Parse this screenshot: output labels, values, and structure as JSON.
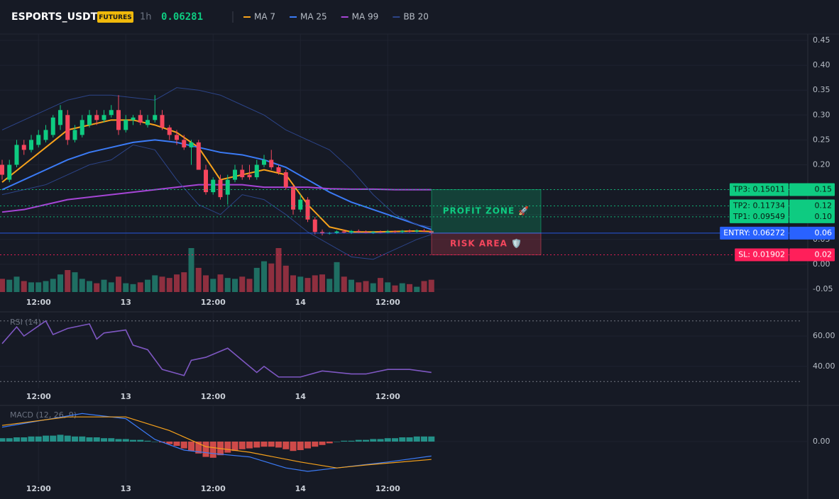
{
  "header": {
    "symbol": "ESPORTS_USDT",
    "badge": "FUTURES",
    "interval": "1h",
    "price": 0.06281
  },
  "chart_data": [
    {
      "type": "candlestick",
      "categories": [
        null,
        null,
        null,
        null,
        null,
        "12:00",
        null,
        null,
        null,
        null,
        null,
        null,
        null,
        null,
        null,
        null,
        null,
        "13",
        null,
        null,
        null,
        null,
        null,
        null,
        null,
        null,
        null,
        null,
        null,
        "12:00",
        null,
        null,
        null,
        null,
        null,
        null,
        null,
        null,
        null,
        null,
        null,
        "14",
        null,
        null,
        null,
        null,
        null,
        null,
        null,
        null,
        null,
        null,
        null,
        "12:00",
        null,
        null,
        null,
        null,
        null,
        null
      ],
      "open": [
        0.2,
        0.17,
        0.2,
        0.24,
        0.23,
        0.24,
        0.25,
        0.26,
        0.28,
        0.3,
        0.25,
        0.26,
        0.28,
        0.3,
        0.29,
        0.3,
        0.31,
        0.27,
        0.29,
        0.3,
        0.28,
        0.29,
        0.3,
        0.275,
        0.26,
        0.25,
        0.235,
        0.245,
        0.19,
        0.145,
        0.17,
        0.14,
        0.17,
        0.19,
        0.18,
        0.175,
        0.2,
        0.21,
        0.195,
        0.185,
        0.155,
        0.11,
        0.13,
        0.09,
        0.065,
        0.062,
        0.063,
        0.066,
        0.064,
        0.067,
        0.065,
        0.063,
        0.065,
        0.064,
        0.066,
        0.065,
        0.067,
        0.066,
        0.068,
        0.067
      ],
      "high": [
        0.21,
        0.21,
        0.25,
        0.25,
        0.26,
        0.27,
        0.28,
        0.3,
        0.32,
        0.31,
        0.28,
        0.3,
        0.31,
        0.31,
        0.31,
        0.32,
        0.34,
        0.3,
        0.3,
        0.31,
        0.3,
        0.34,
        0.31,
        0.28,
        0.27,
        0.26,
        0.25,
        0.25,
        0.2,
        0.175,
        0.18,
        0.18,
        0.2,
        0.2,
        0.2,
        0.21,
        0.22,
        0.23,
        0.2,
        0.19,
        0.16,
        0.14,
        0.135,
        0.095,
        0.07,
        0.065,
        0.068,
        0.07,
        0.069,
        0.07,
        0.068,
        0.067,
        0.068,
        0.069,
        0.068,
        0.069,
        0.07,
        0.07,
        0.071,
        0.068
      ],
      "low": [
        0.17,
        0.165,
        0.195,
        0.22,
        0.225,
        0.235,
        0.245,
        0.255,
        0.27,
        0.24,
        0.245,
        0.255,
        0.275,
        0.28,
        0.285,
        0.295,
        0.26,
        0.265,
        0.28,
        0.28,
        0.275,
        0.285,
        0.27,
        0.25,
        0.24,
        0.23,
        0.2,
        0.19,
        0.14,
        0.14,
        0.13,
        0.12,
        0.165,
        0.17,
        0.17,
        0.17,
        0.195,
        0.19,
        0.18,
        0.15,
        0.1,
        0.105,
        0.085,
        0.06,
        0.058,
        0.06,
        0.061,
        0.062,
        0.061,
        0.063,
        0.062,
        0.061,
        0.062,
        0.062,
        0.063,
        0.063,
        0.064,
        0.064,
        0.065,
        0.061
      ],
      "close": [
        0.18,
        0.2,
        0.24,
        0.23,
        0.25,
        0.26,
        0.27,
        0.295,
        0.31,
        0.25,
        0.27,
        0.29,
        0.3,
        0.29,
        0.3,
        0.31,
        0.27,
        0.29,
        0.295,
        0.285,
        0.29,
        0.3,
        0.275,
        0.26,
        0.25,
        0.235,
        0.245,
        0.19,
        0.145,
        0.17,
        0.135,
        0.17,
        0.19,
        0.175,
        0.175,
        0.2,
        0.21,
        0.195,
        0.185,
        0.155,
        0.11,
        0.13,
        0.09,
        0.065,
        0.062,
        0.063,
        0.066,
        0.064,
        0.067,
        0.065,
        0.063,
        0.065,
        0.064,
        0.066,
        0.065,
        0.067,
        0.066,
        0.068,
        0.067,
        0.06281
      ],
      "volume": [
        30,
        28,
        35,
        25,
        22,
        22,
        25,
        30,
        40,
        50,
        45,
        30,
        25,
        20,
        28,
        22,
        35,
        20,
        18,
        22,
        28,
        38,
        35,
        32,
        40,
        45,
        100,
        55,
        38,
        30,
        40,
        32,
        30,
        35,
        30,
        55,
        70,
        65,
        100,
        60,
        38,
        35,
        32,
        38,
        40,
        30,
        68,
        35,
        28,
        22,
        25,
        20,
        32,
        22,
        15,
        20,
        18,
        12,
        25,
        28
      ],
      "vlim": [
        0,
        100
      ],
      "up_color": "#0ecb81",
      "down_color": "#f6465d",
      "volume_up_color": "#1f6f63",
      "volume_down_color": "#8e2f3f",
      "ylim": [
        -0.05,
        0.45
      ],
      "yticks": [
        0.45,
        {
          "value": 0.4,
          "label": "0.40"
        },
        0.35,
        {
          "value": 0.3,
          "label": "0.30"
        },
        0.25,
        {
          "value": 0.2,
          "label": "0.20"
        },
        0.15,
        {
          "value": 0.1,
          "label": "0.10"
        },
        0.05,
        {
          "value": 0,
          "label": "0.00"
        },
        -0.05
      ],
      "grid": true,
      "lines": [
        {
          "name": "MA 7",
          "color": "#f7a21b",
          "x": [
            0,
            3,
            6,
            9,
            12,
            15,
            18,
            21,
            24,
            27,
            30,
            33,
            36,
            39,
            42,
            45,
            48,
            51,
            54,
            57,
            59
          ],
          "values": [
            0.165,
            0.2,
            0.235,
            0.27,
            0.28,
            0.29,
            0.29,
            0.28,
            0.265,
            0.235,
            0.17,
            0.18,
            0.19,
            0.18,
            0.12,
            0.075,
            0.065,
            0.065,
            0.066,
            0.067,
            0.066
          ]
        },
        {
          "name": "MA 25",
          "color": "#3b7bf6",
          "x": [
            0,
            3,
            6,
            9,
            12,
            15,
            18,
            21,
            24,
            27,
            30,
            33,
            36,
            39,
            42,
            45,
            48,
            51,
            54,
            57,
            59
          ],
          "values": [
            0.15,
            0.17,
            0.19,
            0.21,
            0.225,
            0.235,
            0.245,
            0.25,
            0.245,
            0.235,
            0.225,
            0.22,
            0.21,
            0.195,
            0.17,
            0.145,
            0.125,
            0.11,
            0.095,
            0.08,
            0.07
          ]
        },
        {
          "name": "MA 99",
          "color": "#a645d6",
          "x": [
            0,
            3,
            6,
            9,
            12,
            15,
            18,
            21,
            24,
            27,
            30,
            33,
            36,
            39,
            42,
            45,
            48,
            51,
            54,
            57,
            59
          ],
          "values": [
            0.105,
            0.11,
            0.12,
            0.13,
            0.135,
            0.14,
            0.145,
            0.15,
            0.155,
            0.16,
            0.16,
            0.16,
            0.155,
            0.155,
            0.155,
            0.152,
            0.151,
            0.151,
            0.15,
            0.15,
            0.15
          ]
        },
        {
          "name": "BB 20",
          "color": "#2c4488",
          "x": [
            0,
            3,
            6,
            9,
            12,
            15,
            18,
            21,
            24,
            27,
            30,
            33,
            36,
            39,
            42,
            45,
            48,
            51,
            54,
            57,
            59
          ],
          "values": [
            0.27,
            0.29,
            0.31,
            0.33,
            0.34,
            0.34,
            0.335,
            0.33,
            0.355,
            0.35,
            0.34,
            0.32,
            0.3,
            0.27,
            0.25,
            0.23,
            0.19,
            0.14,
            0.1,
            0.08,
            0.075
          ],
          "lower": [
            0.14,
            0.15,
            0.16,
            0.18,
            0.2,
            0.21,
            0.24,
            0.23,
            0.17,
            0.12,
            0.1,
            0.14,
            0.13,
            0.1,
            0.065,
            0.04,
            0.015,
            0.01,
            0.03,
            0.05,
            0.06
          ]
        }
      ],
      "levels": [
        {
          "label": "TP3: 0.15011",
          "value": 0.15011,
          "tag": "0.15",
          "color": "#0ecb81",
          "style": "dotted"
        },
        {
          "label": "TP2: 0.11734",
          "value": 0.11734,
          "tag": "0.12",
          "color": "#0ecb81",
          "style": "dotted"
        },
        {
          "label": "TP1: 0.09549",
          "value": 0.09549,
          "tag": "0.10",
          "color": "#0ecb81",
          "style": "dotted"
        },
        {
          "label": "ENTRY: 0.06272",
          "value": 0.06272,
          "tag": "0.06",
          "color": "#2962ff",
          "style": "solid"
        },
        {
          "label": "SL: 0.01902",
          "value": 0.01902,
          "tag": "0.02",
          "color": "#ff1f5a",
          "style": "dotted"
        }
      ],
      "zones": [
        {
          "label": "PROFIT ZONE 🚀",
          "from": 0.15011,
          "to": 0.06272,
          "color": "#0ecb81"
        },
        {
          "label": "RISK AREA 🛡️",
          "from": 0.06272,
          "to": 0.01902,
          "color": "#f6465d"
        }
      ]
    },
    {
      "type": "line",
      "title": "RSI (14)",
      "color": "#7e57c2",
      "x": [
        0,
        2,
        3,
        6,
        7,
        9,
        12,
        13,
        14,
        17,
        18,
        20,
        22,
        25,
        26,
        28,
        31,
        32,
        35,
        36,
        38,
        41,
        44,
        48,
        50,
        53,
        56,
        59
      ],
      "values": [
        55,
        66,
        60,
        70,
        61,
        65,
        68,
        58,
        62,
        64,
        54,
        51,
        38,
        34,
        44,
        46,
        52,
        48,
        36,
        40,
        33,
        33,
        37,
        35,
        35,
        38,
        38,
        36
      ],
      "ylim": [
        25,
        75
      ],
      "yticks": [
        {
          "value": 60,
          "label": "60.00"
        },
        {
          "value": 40,
          "label": "40.00"
        }
      ],
      "bands": [
        30,
        70
      ],
      "grid": true
    },
    {
      "type": "macd",
      "title": "MACD (12, 26, 9)",
      "ylim": [
        -0.04,
        0.04
      ],
      "yticks": [
        {
          "value": 0,
          "label": "0.00"
        }
      ],
      "grid": true,
      "histogram": [
        0.004,
        0.004,
        0.005,
        0.005,
        0.006,
        0.006,
        0.007,
        0.007,
        0.008,
        0.007,
        0.006,
        0.006,
        0.005,
        0.005,
        0.004,
        0.004,
        0.003,
        0.003,
        0.002,
        0.002,
        0.001,
        0.0,
        -0.001,
        -0.003,
        -0.005,
        -0.008,
        -0.011,
        -0.014,
        -0.018,
        -0.019,
        -0.016,
        -0.013,
        -0.011,
        -0.009,
        -0.008,
        -0.007,
        -0.006,
        -0.006,
        -0.007,
        -0.009,
        -0.011,
        -0.01,
        -0.008,
        -0.006,
        -0.004,
        -0.002,
        0.0,
        0.001,
        0.001,
        0.002,
        0.002,
        0.003,
        0.003,
        0.004,
        0.004,
        0.005,
        0.005,
        0.006,
        0.006,
        0.006
      ],
      "up_color": "#26a69a",
      "down_color": "#ef5350",
      "series": [
        {
          "color": "#3b7bf6",
          "x": [
            0,
            11,
            17,
            21,
            25,
            29,
            34,
            39,
            42,
            46,
            53,
            59
          ],
          "values": [
            0.017,
            0.033,
            0.027,
            0.0025,
            -0.01,
            -0.014,
            -0.018,
            -0.031,
            -0.035,
            -0.031,
            -0.024,
            -0.017
          ]
        },
        {
          "color": "#f7a21b",
          "x": [
            0,
            9,
            17,
            23,
            28,
            34,
            41,
            46,
            50,
            59
          ],
          "values": [
            0.019,
            0.029,
            0.029,
            0.013,
            -0.006,
            -0.0125,
            -0.024,
            -0.031,
            -0.0275,
            -0.021
          ]
        }
      ]
    }
  ]
}
